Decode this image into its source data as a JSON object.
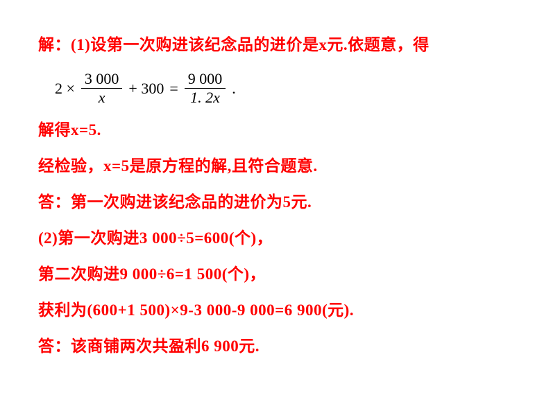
{
  "text_color": "#ff0000",
  "equation_color": "#000000",
  "background_color": "#ffffff",
  "font_size_main": 23,
  "font_size_equation": 22,
  "font_weight": "bold",
  "line1": "解：(1)设第一次购进该纪念品的进价是x元.依题意，得",
  "equation": {
    "lhs_coef": "2 ×",
    "frac1_num": "3 000",
    "frac1_den": "x",
    "plus": "+ 300",
    "eq": "=",
    "frac2_num": "9 000",
    "frac2_den": "1. 2x",
    "end": "."
  },
  "line2": "解得x=5.",
  "line3": "经检验，x=5是原方程的解,且符合题意.",
  "line4": "答：第一次购进该纪念品的进价为5元.",
  "line5": "(2)第一次购进3 000÷5=600(个)，",
  "line6": "第二次购进9 000÷6=1 500(个)，",
  "line7": "获利为(600+1 500)×9-3 000-9 000=6 900(元).",
  "line8": "答：该商铺两次共盈利6 900元."
}
